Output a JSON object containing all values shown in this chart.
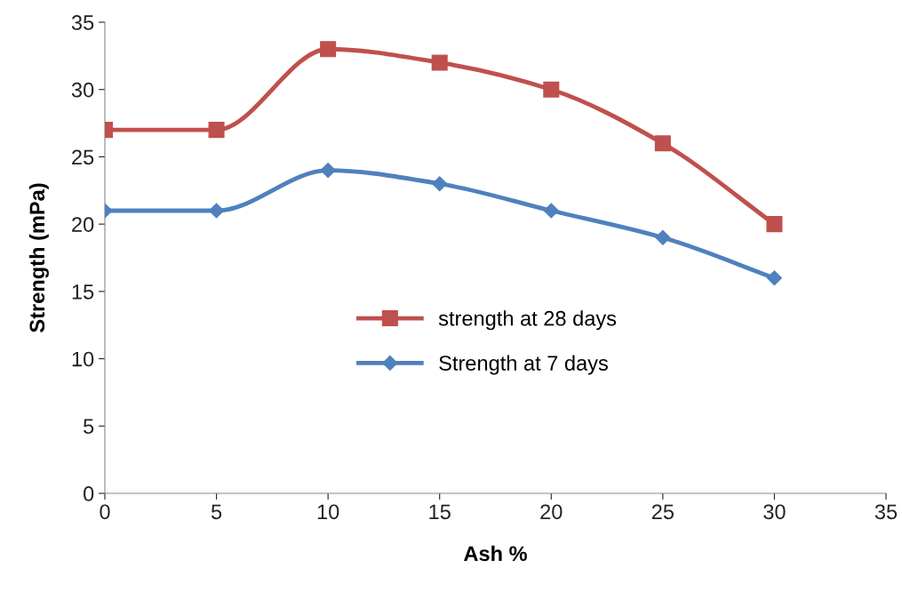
{
  "chart_data": {
    "type": "line",
    "xlabel": "Ash %",
    "ylabel": "Strength (mPa)",
    "x": [
      0,
      5,
      10,
      15,
      20,
      25,
      30
    ],
    "series": [
      {
        "name": "strength at 28 days",
        "color": "#c0504d",
        "marker": "square",
        "values": [
          27,
          27,
          33,
          32,
          30,
          26,
          20
        ]
      },
      {
        "name": "Strength at 7 days",
        "color": "#4f81bd",
        "marker": "diamond",
        "values": [
          21,
          21,
          24,
          23,
          21,
          19,
          16
        ]
      }
    ],
    "xlim": [
      0,
      35
    ],
    "xticks": [
      0,
      5,
      10,
      15,
      20,
      25,
      30,
      35
    ],
    "ylim": [
      0,
      35
    ],
    "yticks": [
      0,
      5,
      10,
      15,
      20,
      25,
      30,
      35
    ],
    "grid": false,
    "legend": "center",
    "line_style": "solid"
  }
}
